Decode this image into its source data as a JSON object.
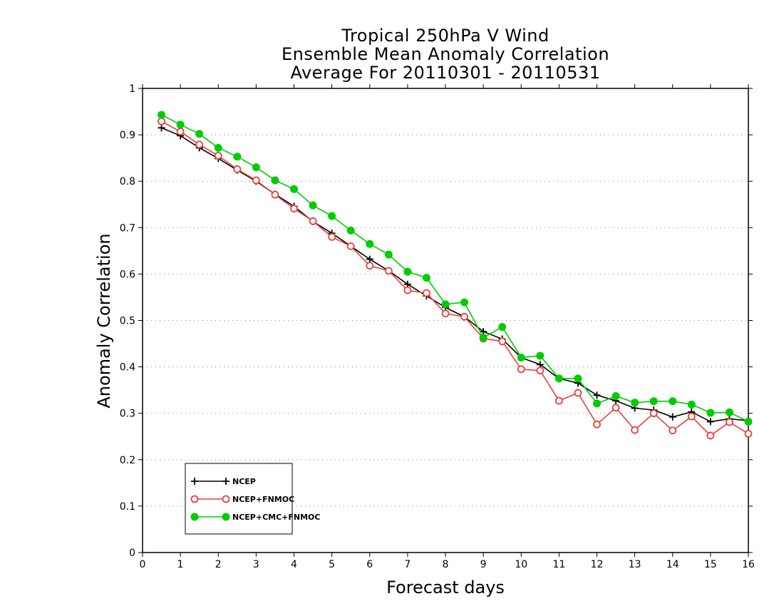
{
  "chart_data": {
    "type": "line",
    "title_lines": [
      "Tropical 250hPa V Wind",
      "Ensemble Mean Anomaly Correlation",
      "Average For 20110301 - 20110531"
    ],
    "xlabel": "Forecast days",
    "ylabel": "Anomaly Correlation",
    "xlim": [
      0,
      16
    ],
    "ylim": [
      0,
      1
    ],
    "xticks": [
      0,
      1,
      2,
      3,
      4,
      5,
      6,
      7,
      8,
      9,
      10,
      11,
      12,
      13,
      14,
      15,
      16
    ],
    "yticks": [
      0,
      0.1,
      0.2,
      0.3,
      0.4,
      0.5,
      0.6,
      0.7,
      0.8,
      0.9,
      1
    ],
    "grid": "horizontal dotted",
    "legend_position": "bottom-left",
    "x": [
      0.5,
      1,
      1.5,
      2,
      2.5,
      3,
      3.5,
      4,
      4.5,
      5,
      5.5,
      6,
      6.5,
      7,
      7.5,
      8,
      8.5,
      9,
      9.5,
      10,
      10.5,
      11,
      11.5,
      12,
      12.5,
      13,
      13.5,
      14,
      14.5,
      15,
      15.5,
      16
    ],
    "series": [
      {
        "name": "NCEP",
        "color": "#000000",
        "marker": "plus",
        "values": [
          0.915,
          0.898,
          0.872,
          0.849,
          0.824,
          0.8,
          0.772,
          0.746,
          0.713,
          0.688,
          0.66,
          0.632,
          0.607,
          0.578,
          0.553,
          0.528,
          0.508,
          0.476,
          0.46,
          0.42,
          0.405,
          0.375,
          0.365,
          0.339,
          0.327,
          0.311,
          0.307,
          0.292,
          0.303,
          0.282,
          0.288,
          0.284
        ]
      },
      {
        "name": "NCEP+FNMOC",
        "color": "#e8403c",
        "marker": "open-circle",
        "values": [
          0.929,
          0.907,
          0.879,
          0.855,
          0.826,
          0.802,
          0.771,
          0.741,
          0.714,
          0.68,
          0.66,
          0.618,
          0.607,
          0.565,
          0.559,
          0.515,
          0.508,
          0.461,
          0.455,
          0.395,
          0.392,
          0.327,
          0.344,
          0.276,
          0.312,
          0.264,
          0.3,
          0.263,
          0.293,
          0.252,
          0.281,
          0.256
        ]
      },
      {
        "name": "NCEP+CMC+FNMOC",
        "color": "#00cc00",
        "marker": "filled-circle",
        "values": [
          0.943,
          0.922,
          0.902,
          0.872,
          0.853,
          0.83,
          0.802,
          0.783,
          0.748,
          0.725,
          0.694,
          0.665,
          0.642,
          0.605,
          0.592,
          0.535,
          0.539,
          0.463,
          0.486,
          0.42,
          0.424,
          0.375,
          0.375,
          0.321,
          0.337,
          0.323,
          0.326,
          0.326,
          0.319,
          0.301,
          0.302,
          0.282
        ]
      }
    ]
  }
}
